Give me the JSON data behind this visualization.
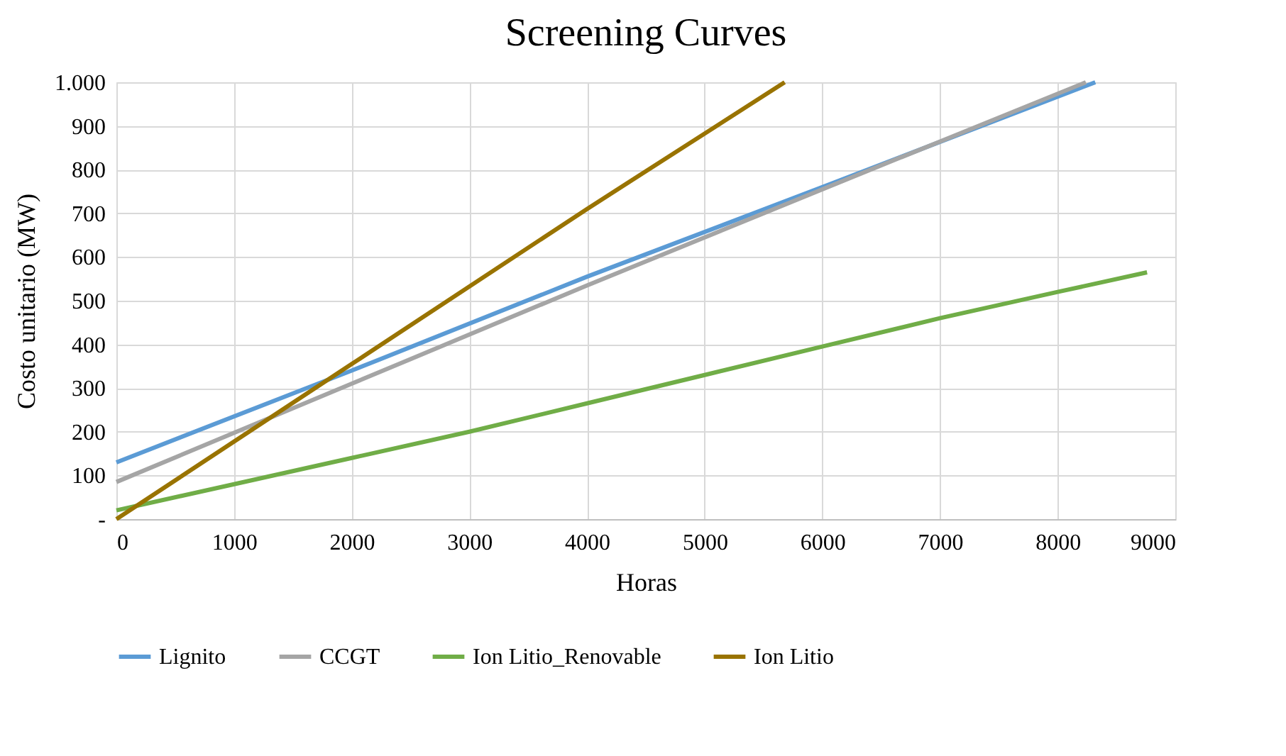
{
  "chart_data": {
    "type": "line",
    "title": "Screening Curves",
    "xlabel": "Horas",
    "ylabel": "Costo unitario (MW)",
    "series": [
      {
        "name": "Lignito",
        "color": "#5b9bd5",
        "x": [
          0,
          2000,
          4000,
          6000,
          8320
        ],
        "values": [
          130,
          340,
          555,
          760,
          1000
        ]
      },
      {
        "name": "CCGT",
        "color": "#a5a5a5",
        "x": [
          0,
          2000,
          4000,
          6000,
          8240
        ],
        "values": [
          85,
          310,
          535,
          755,
          1000
        ]
      },
      {
        "name": "Ion Litio_Renovable",
        "color": "#70ad47",
        "x": [
          0,
          1000,
          2000,
          3000,
          4000,
          5000,
          6000,
          7000,
          8000,
          8760
        ],
        "values": [
          20,
          80,
          140,
          200,
          265,
          330,
          395,
          460,
          520,
          565
        ]
      },
      {
        "name": "Ion Litio",
        "color": "#997300",
        "x": [
          0,
          2000,
          4000,
          5680
        ],
        "values": [
          0,
          355,
          710,
          1000
        ]
      }
    ],
    "xlim": [
      0,
      9000
    ],
    "xticks": [
      0,
      1000,
      2000,
      3000,
      4000,
      5000,
      6000,
      7000,
      8000,
      9000
    ],
    "ylim": [
      0,
      1000
    ],
    "yticks": [
      {
        "value": 0,
        "label": "-"
      },
      100,
      200,
      300,
      400,
      500,
      600,
      700,
      800,
      900,
      {
        "value": 1000,
        "label": "1.000"
      }
    ],
    "grid": true,
    "legend": "bottom",
    "marker": "none",
    "line_style": "solid"
  }
}
